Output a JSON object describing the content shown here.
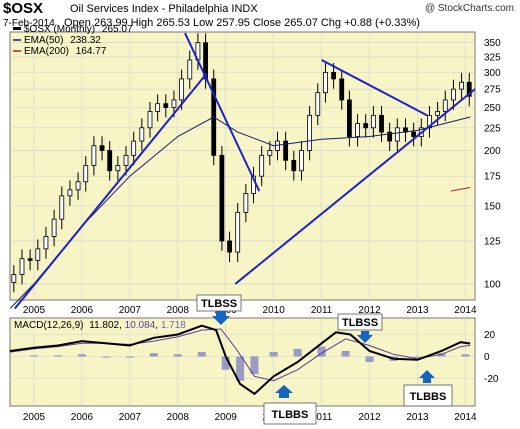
{
  "header": {
    "symbol": "$OSX",
    "name": "Oil Services Index - Philadelphia  INDX",
    "watermark": "@ StockCharts.com",
    "date": "7-Feb-2014",
    "ohlc": "Open 263.99  High 265.53  Low 257.95  Close 265.07  Chg +0.88 (+0.33%)"
  },
  "colors": {
    "plot_bg": "#f7f4c6",
    "grid": "#cfcfcf",
    "candle": "#000000",
    "ema50": "#1a1a6e",
    "ema200": "#c21c1c",
    "trendline": "#1f22c8",
    "hist": "#9a9ac6",
    "macd": "#000000",
    "signal": "#5c3c96",
    "arrow": "#1565c0"
  },
  "chart_data": [
    {
      "type": "candlestick",
      "title": "$OSX Oil Services Index - Philadelphia INDX",
      "legend": [
        {
          "name": "$OSX (Monthly)",
          "value": "265.07"
        },
        {
          "name": "EMA(50)",
          "value": "238.32"
        },
        {
          "name": "EMA(200)",
          "value": "164.77"
        }
      ],
      "y_scale": "log",
      "ylim": [
        92,
        370
      ],
      "xlim": [
        2004.5,
        2014.2
      ],
      "y_ticks": [
        100,
        125,
        150,
        175,
        200,
        225,
        250,
        275,
        300,
        325,
        350
      ],
      "x_ticks": [
        "2005",
        "2006",
        "2007",
        "2008",
        "2009",
        "2010",
        "2011",
        "2012",
        "2013",
        "2014"
      ],
      "x_tick_values": [
        2005,
        2006,
        2007,
        2008,
        2009,
        2010,
        2011,
        2012,
        2013,
        2014
      ],
      "close": [
        {
          "t": 2004.58,
          "v": 105
        },
        {
          "t": 2004.75,
          "v": 114
        },
        {
          "t": 2004.92,
          "v": 113
        },
        {
          "t": 2005.08,
          "v": 120
        },
        {
          "t": 2005.25,
          "v": 128
        },
        {
          "t": 2005.42,
          "v": 140
        },
        {
          "t": 2005.58,
          "v": 158
        },
        {
          "t": 2005.75,
          "v": 163
        },
        {
          "t": 2005.92,
          "v": 170
        },
        {
          "t": 2006.08,
          "v": 185
        },
        {
          "t": 2006.25,
          "v": 205
        },
        {
          "t": 2006.42,
          "v": 200
        },
        {
          "t": 2006.58,
          "v": 180
        },
        {
          "t": 2006.75,
          "v": 185
        },
        {
          "t": 2006.92,
          "v": 195
        },
        {
          "t": 2007.08,
          "v": 210
        },
        {
          "t": 2007.25,
          "v": 225
        },
        {
          "t": 2007.42,
          "v": 245
        },
        {
          "t": 2007.58,
          "v": 255
        },
        {
          "t": 2007.75,
          "v": 250
        },
        {
          "t": 2007.92,
          "v": 260
        },
        {
          "t": 2008.08,
          "v": 290
        },
        {
          "t": 2008.25,
          "v": 320
        },
        {
          "t": 2008.42,
          "v": 350
        },
        {
          "t": 2008.58,
          "v": 290
        },
        {
          "t": 2008.75,
          "v": 195
        },
        {
          "t": 2008.92,
          "v": 125
        },
        {
          "t": 2009.08,
          "v": 118
        },
        {
          "t": 2009.25,
          "v": 145
        },
        {
          "t": 2009.42,
          "v": 160
        },
        {
          "t": 2009.58,
          "v": 175
        },
        {
          "t": 2009.75,
          "v": 195
        },
        {
          "t": 2009.92,
          "v": 200
        },
        {
          "t": 2010.08,
          "v": 210
        },
        {
          "t": 2010.25,
          "v": 190
        },
        {
          "t": 2010.42,
          "v": 180
        },
        {
          "t": 2010.58,
          "v": 200
        },
        {
          "t": 2010.75,
          "v": 240
        },
        {
          "t": 2010.92,
          "v": 270
        },
        {
          "t": 2011.08,
          "v": 300
        },
        {
          "t": 2011.25,
          "v": 290
        },
        {
          "t": 2011.42,
          "v": 260
        },
        {
          "t": 2011.58,
          "v": 215
        },
        {
          "t": 2011.75,
          "v": 230
        },
        {
          "t": 2011.92,
          "v": 225
        },
        {
          "t": 2012.08,
          "v": 240
        },
        {
          "t": 2012.25,
          "v": 220
        },
        {
          "t": 2012.42,
          "v": 210
        },
        {
          "t": 2012.58,
          "v": 225
        },
        {
          "t": 2012.75,
          "v": 220
        },
        {
          "t": 2012.92,
          "v": 215
        },
        {
          "t": 2013.08,
          "v": 225
        },
        {
          "t": 2013.25,
          "v": 240
        },
        {
          "t": 2013.42,
          "v": 245
        },
        {
          "t": 2013.58,
          "v": 260
        },
        {
          "t": 2013.75,
          "v": 275
        },
        {
          "t": 2013.92,
          "v": 285
        },
        {
          "t": 2014.08,
          "v": 265
        }
      ],
      "ema50": [
        {
          "t": 2004.5,
          "v": 88
        },
        {
          "t": 2005.0,
          "v": 100
        },
        {
          "t": 2006.0,
          "v": 135
        },
        {
          "t": 2007.0,
          "v": 175
        },
        {
          "t": 2008.0,
          "v": 215
        },
        {
          "t": 2008.75,
          "v": 238
        },
        {
          "t": 2009.25,
          "v": 220
        },
        {
          "t": 2010.0,
          "v": 205
        },
        {
          "t": 2011.0,
          "v": 212
        },
        {
          "t": 2012.0,
          "v": 215
        },
        {
          "t": 2013.0,
          "v": 222
        },
        {
          "t": 2014.1,
          "v": 238
        }
      ],
      "ema200": [
        {
          "t": 2013.7,
          "v": 162
        },
        {
          "t": 2014.1,
          "v": 165
        }
      ],
      "trendlines": [
        {
          "from": {
            "t": 2004.6,
            "v": 88
          },
          "to": {
            "t": 2008.6,
            "v": 298
          }
        },
        {
          "from": {
            "t": 2008.15,
            "v": 368
          },
          "to": {
            "t": 2009.7,
            "v": 162
          }
        },
        {
          "from": {
            "t": 2009.2,
            "v": 100
          },
          "to": {
            "t": 2014.2,
            "v": 275
          }
        },
        {
          "from": {
            "t": 2011.0,
            "v": 320
          },
          "to": {
            "t": 2013.2,
            "v": 240
          }
        }
      ]
    },
    {
      "type": "line",
      "title": "MACD(12,26,9)",
      "legend": [
        {
          "name": "MACD(12,26,9)",
          "value": "11.802"
        },
        {
          "name": "signal",
          "value": "10.084"
        },
        {
          "name": "histogram",
          "value": "1.718"
        }
      ],
      "ylim": [
        -45,
        35
      ],
      "y_ticks": [
        -20,
        0,
        20
      ],
      "xlim": [
        2004.5,
        2014.2
      ],
      "x_ticks": [
        "2005",
        "2006",
        "2007",
        "2008",
        "2009",
        "2010",
        "2011",
        "2012",
        "2013",
        "2014"
      ],
      "x_tick_values": [
        2005,
        2006,
        2007,
        2008,
        2009,
        2010,
        2011,
        2012,
        2013,
        2014
      ],
      "macd": [
        {
          "t": 2004.5,
          "v": 5
        },
        {
          "t": 2005.0,
          "v": 8
        },
        {
          "t": 2005.5,
          "v": 10
        },
        {
          "t": 2006.0,
          "v": 14
        },
        {
          "t": 2006.5,
          "v": 12
        },
        {
          "t": 2007.0,
          "v": 10
        },
        {
          "t": 2007.5,
          "v": 17
        },
        {
          "t": 2008.0,
          "v": 20
        },
        {
          "t": 2008.5,
          "v": 28
        },
        {
          "t": 2008.8,
          "v": 24
        },
        {
          "t": 2009.0,
          "v": 0
        },
        {
          "t": 2009.3,
          "v": -25
        },
        {
          "t": 2009.6,
          "v": -34
        },
        {
          "t": 2010.0,
          "v": -18
        },
        {
          "t": 2010.5,
          "v": -5
        },
        {
          "t": 2011.0,
          "v": 12
        },
        {
          "t": 2011.3,
          "v": 22
        },
        {
          "t": 2011.6,
          "v": 20
        },
        {
          "t": 2012.0,
          "v": 5
        },
        {
          "t": 2012.5,
          "v": -2
        },
        {
          "t": 2013.0,
          "v": -3
        },
        {
          "t": 2013.5,
          "v": 5
        },
        {
          "t": 2013.9,
          "v": 13
        },
        {
          "t": 2014.1,
          "v": 11.8
        }
      ],
      "signal": [
        {
          "t": 2004.5,
          "v": 4
        },
        {
          "t": 2005.0,
          "v": 7
        },
        {
          "t": 2005.5,
          "v": 9
        },
        {
          "t": 2006.0,
          "v": 12
        },
        {
          "t": 2006.5,
          "v": 12
        },
        {
          "t": 2007.0,
          "v": 11
        },
        {
          "t": 2007.5,
          "v": 14
        },
        {
          "t": 2008.0,
          "v": 18
        },
        {
          "t": 2008.5,
          "v": 24
        },
        {
          "t": 2008.9,
          "v": 25
        },
        {
          "t": 2009.2,
          "v": 8
        },
        {
          "t": 2009.6,
          "v": -18
        },
        {
          "t": 2010.0,
          "v": -22
        },
        {
          "t": 2010.5,
          "v": -12
        },
        {
          "t": 2011.0,
          "v": 3
        },
        {
          "t": 2011.5,
          "v": 16
        },
        {
          "t": 2012.0,
          "v": 10
        },
        {
          "t": 2012.5,
          "v": 2
        },
        {
          "t": 2013.0,
          "v": -2
        },
        {
          "t": 2013.5,
          "v": 2
        },
        {
          "t": 2013.9,
          "v": 9
        },
        {
          "t": 2014.1,
          "v": 10.1
        }
      ],
      "histogram": [
        {
          "t": 2005.0,
          "v": 1
        },
        {
          "t": 2005.5,
          "v": 1
        },
        {
          "t": 2006.0,
          "v": 2
        },
        {
          "t": 2006.5,
          "v": 0
        },
        {
          "t": 2007.0,
          "v": -1
        },
        {
          "t": 2007.5,
          "v": 3
        },
        {
          "t": 2008.0,
          "v": 2
        },
        {
          "t": 2008.5,
          "v": 4
        },
        {
          "t": 2009.0,
          "v": -12
        },
        {
          "t": 2009.3,
          "v": -22
        },
        {
          "t": 2009.6,
          "v": -16
        },
        {
          "t": 2010.0,
          "v": 4
        },
        {
          "t": 2010.5,
          "v": 7
        },
        {
          "t": 2011.0,
          "v": 9
        },
        {
          "t": 2011.5,
          "v": 5
        },
        {
          "t": 2012.0,
          "v": -5
        },
        {
          "t": 2012.5,
          "v": -4
        },
        {
          "t": 2013.0,
          "v": -1
        },
        {
          "t": 2013.5,
          "v": 3
        },
        {
          "t": 2014.0,
          "v": 2
        }
      ]
    }
  ],
  "annotations": [
    {
      "label": "TLBSS",
      "panel": "price"
    },
    {
      "label": "TLBSS",
      "panel": "macd"
    },
    {
      "label": "TLBBS",
      "panel": "macd"
    },
    {
      "label": "TLBBS",
      "panel": "macd"
    }
  ]
}
